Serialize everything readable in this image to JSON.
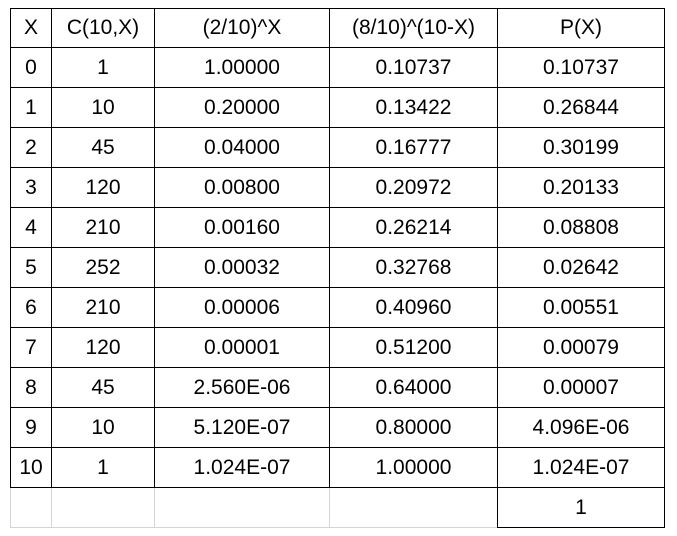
{
  "table": {
    "header": [
      "X",
      "C(10,X)",
      "(2/10)^X",
      "(8/10)^(10-X)",
      "P(X)"
    ],
    "rows": [
      [
        "0",
        "1",
        "1.00000",
        "0.10737",
        "0.10737"
      ],
      [
        "1",
        "10",
        "0.20000",
        "0.13422",
        "0.26844"
      ],
      [
        "2",
        "45",
        "0.04000",
        "0.16777",
        "0.30199"
      ],
      [
        "3",
        "120",
        "0.00800",
        "0.20972",
        "0.20133"
      ],
      [
        "4",
        "210",
        "0.00160",
        "0.26214",
        "0.08808"
      ],
      [
        "5",
        "252",
        "0.00032",
        "0.32768",
        "0.02642"
      ],
      [
        "6",
        "210",
        "0.00006",
        "0.40960",
        "0.00551"
      ],
      [
        "7",
        "120",
        "0.00001",
        "0.51200",
        "0.00079"
      ],
      [
        "8",
        "45",
        "2.560E-06",
        "0.64000",
        "0.00007"
      ],
      [
        "9",
        "10",
        "5.120E-07",
        "0.80000",
        "4.096E-06"
      ],
      [
        "10",
        "1",
        "1.024E-07",
        "1.00000",
        "1.024E-07"
      ]
    ],
    "total": "1"
  }
}
